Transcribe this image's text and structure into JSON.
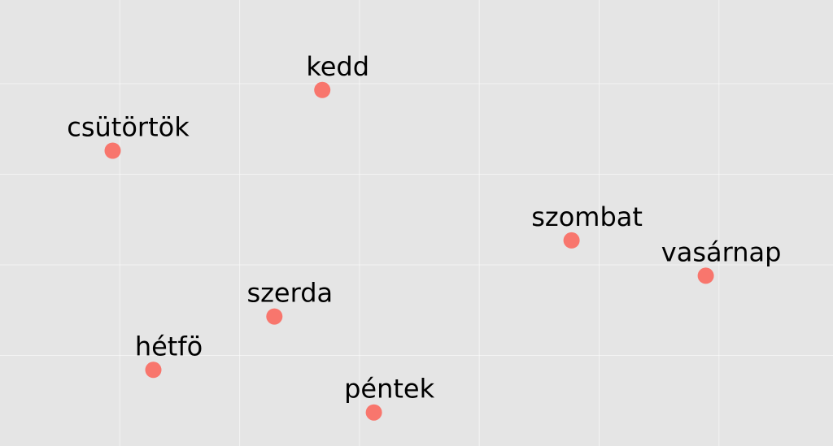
{
  "chart_data": {
    "type": "scatter",
    "title": "",
    "xlabel": "",
    "ylabel": "",
    "xlim": [
      0,
      7
    ],
    "ylim": [
      0,
      5
    ],
    "grid": true,
    "legend": "none",
    "colors": {
      "background": "#e5e5e5",
      "grid": "#ffffff",
      "point": "#f8766d",
      "text": "#000000"
    },
    "points": [
      {
        "label": "hétfö",
        "x": 1.28,
        "y": 0.84
      },
      {
        "label": "kedd",
        "x": 2.69,
        "y": 3.93
      },
      {
        "label": "szerda",
        "x": 2.29,
        "y": 1.43
      },
      {
        "label": "csütörtök",
        "x": 0.94,
        "y": 3.26
      },
      {
        "label": "péntek",
        "x": 3.12,
        "y": 0.37
      },
      {
        "label": "szombat",
        "x": 4.77,
        "y": 2.27
      },
      {
        "label": "vasárnap",
        "x": 5.89,
        "y": 1.88
      }
    ]
  }
}
